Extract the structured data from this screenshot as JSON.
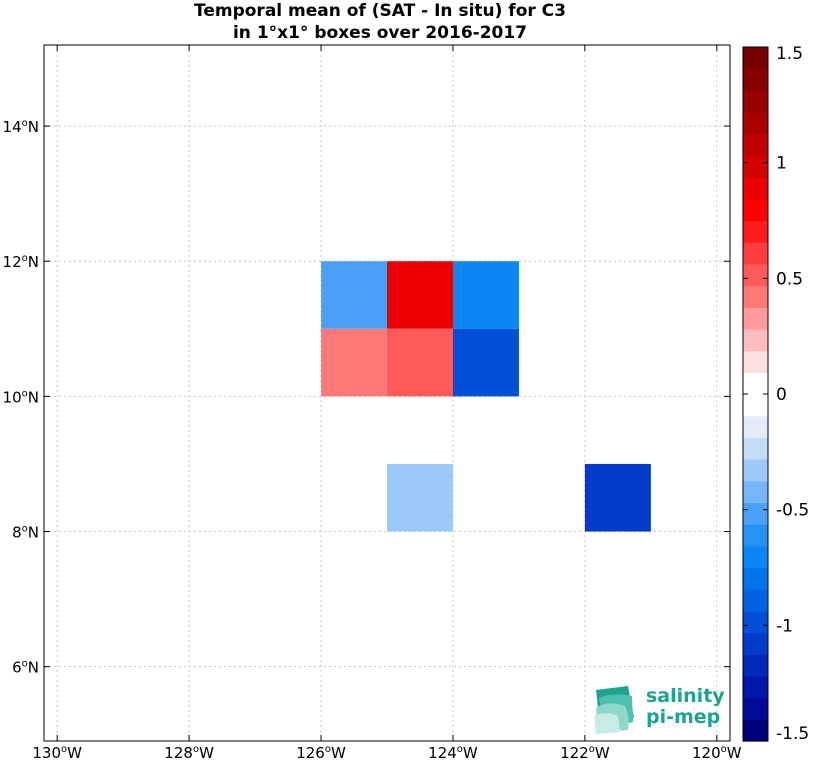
{
  "title": {
    "line1": "Temporal mean of (SAT - In situ) for C3",
    "line2": "in 1°x1° boxes over 2016-2017"
  },
  "map": {
    "lon_range": [
      -130.2,
      -119.8
    ],
    "lat_range": [
      4.9,
      15.2
    ],
    "x_ticks": [
      {
        "lon": -130,
        "label": "130",
        "hemi": "W"
      },
      {
        "lon": -128,
        "label": "128",
        "hemi": "W"
      },
      {
        "lon": -126,
        "label": "126",
        "hemi": "W"
      },
      {
        "lon": -124,
        "label": "124",
        "hemi": "W"
      },
      {
        "lon": -122,
        "label": "122",
        "hemi": "W"
      },
      {
        "lon": -120,
        "label": "120",
        "hemi": "W"
      }
    ],
    "y_ticks": [
      {
        "lat": 6,
        "label": "6",
        "hemi": "N"
      },
      {
        "lat": 8,
        "label": "8",
        "hemi": "N"
      },
      {
        "lat": 10,
        "label": "10",
        "hemi": "N"
      },
      {
        "lat": 12,
        "label": "12",
        "hemi": "N"
      },
      {
        "lat": 14,
        "label": "14",
        "hemi": "N"
      }
    ],
    "grid": "dotted",
    "degree_symbol": "o"
  },
  "chart_data": {
    "type": "heatmap",
    "cell_size_deg": 1,
    "cells": [
      {
        "lon0": -126,
        "lat0": 11,
        "value": -0.55
      },
      {
        "lon0": -125,
        "lat0": 11,
        "value": 0.85
      },
      {
        "lon0": -124,
        "lat0": 11,
        "value": -0.75
      },
      {
        "lon0": -126,
        "lat0": 10,
        "value": 0.38
      },
      {
        "lon0": -125,
        "lat0": 10,
        "value": 0.55
      },
      {
        "lon0": -124,
        "lat0": 10,
        "value": -0.95
      },
      {
        "lon0": -125,
        "lat0": 8,
        "value": -0.3
      },
      {
        "lon0": -122,
        "lat0": 8,
        "value": -1.05
      }
    ],
    "colorbar": {
      "min": -1.5,
      "max": 1.5,
      "ticks": [
        {
          "value": 1.5,
          "label": "1.5"
        },
        {
          "value": 1,
          "label": "1"
        },
        {
          "value": 0.5,
          "label": "0.5"
        },
        {
          "value": 0,
          "label": "0"
        },
        {
          "value": -0.5,
          "label": "-0.5"
        },
        {
          "value": -1,
          "label": "-1"
        },
        {
          "value": -1.5,
          "label": "-1.5"
        }
      ],
      "colors": [
        "#00007e",
        "#000c96",
        "#0018aa",
        "#0029bc",
        "#003ccb",
        "#004fd8",
        "#0062e2",
        "#0074ec",
        "#0a86f6",
        "#2592f8",
        "#4aa2f8",
        "#74b6f8",
        "#9ccaf8",
        "#c2dcf8",
        "#e2ecfa",
        "#ffffff",
        "#ffffff",
        "#fde0e0",
        "#ffbcbc",
        "#ff9a9a",
        "#ff7878",
        "#ff5a5a",
        "#ff3c3c",
        "#ff1c1c",
        "#ff0000",
        "#ea0000",
        "#d40000",
        "#c00000",
        "#ac0000",
        "#980000",
        "#860000",
        "#740000"
      ]
    }
  },
  "logo": {
    "line1": "salinity",
    "line2": "pi-mep",
    "color": "#1aa58f"
  }
}
